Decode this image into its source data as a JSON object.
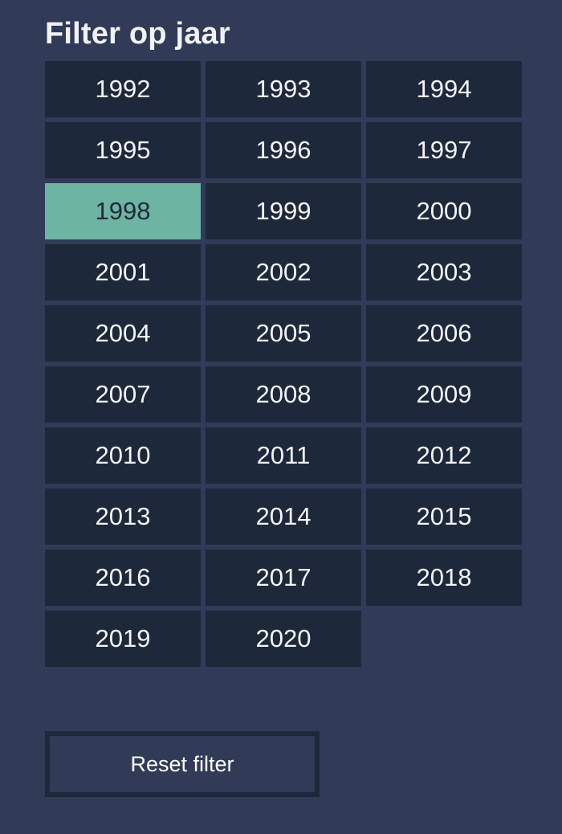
{
  "filter": {
    "title": "Filter op jaar",
    "selected_year": "1998",
    "years": [
      "1992",
      "1993",
      "1994",
      "1995",
      "1996",
      "1997",
      "1998",
      "1999",
      "2000",
      "2001",
      "2002",
      "2003",
      "2004",
      "2005",
      "2006",
      "2007",
      "2008",
      "2009",
      "2010",
      "2011",
      "2012",
      "2013",
      "2014",
      "2015",
      "2016",
      "2017",
      "2018",
      "2019",
      "2020"
    ],
    "reset_label": "Reset filter"
  },
  "colors": {
    "background": "#313a56",
    "tile": "#1e283b",
    "tile_active": "#6db4a2",
    "text": "#ffffff",
    "text_active": "#1f2a3a"
  }
}
